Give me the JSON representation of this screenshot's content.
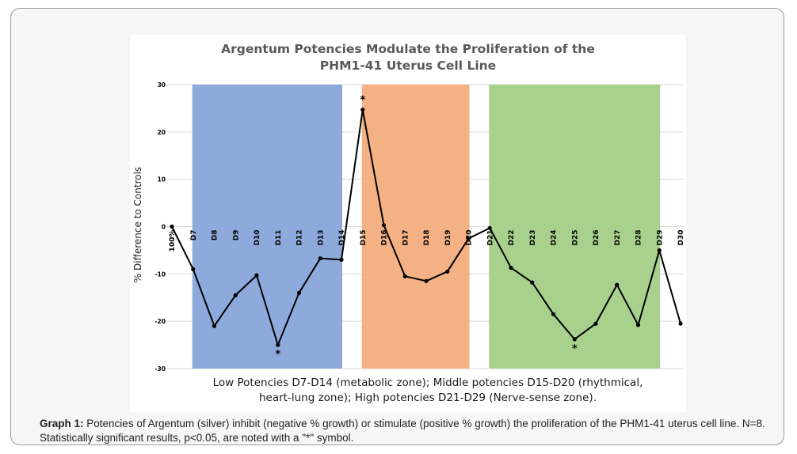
{
  "caption": {
    "label": "Graph 1:",
    "text": "Potencies of Argentum (silver) inhibit (negative % growth) or stimulate (positive % growth) the proliferation of the PHM1-41 uterus cell line. N=8. Statistically significant results, p<0.05, are noted with a \"*\" symbol."
  },
  "chart_data": {
    "type": "line",
    "title_lines": [
      "Argentum Potencies Modulate the Proliferation of the",
      "PHM1-41 Uterus Cell Line"
    ],
    "ylabel": "% Difference to Controls",
    "xlabel": "",
    "ylim": [
      -30,
      30
    ],
    "yticks": [
      30,
      20,
      10,
      0,
      -10,
      -20,
      -30
    ],
    "categories": [
      "100%",
      "D7",
      "D8",
      "D9",
      "D10",
      "D11",
      "D12",
      "D13",
      "D14",
      "D15",
      "D16",
      "D17",
      "D18",
      "D19",
      "D20",
      "D21",
      "D22",
      "D23",
      "D24",
      "D25",
      "D26",
      "D27",
      "D28",
      "D29",
      "D30"
    ],
    "series": [
      {
        "values": [
          0,
          -9,
          -21,
          -14.5,
          -10.3,
          -25,
          -14,
          -6.7,
          -7,
          24.7,
          0.3,
          -10.5,
          -11.5,
          -9.5,
          -2.5,
          -0.3,
          -8.7,
          -11.8,
          -18.5,
          -23.8,
          -20.5,
          -12.3,
          -20.8,
          -5,
          -20.5
        ],
        "color": "#000000"
      }
    ],
    "significant": [
      {
        "category": "D11",
        "marker": "*"
      },
      {
        "category": "D15",
        "marker": "*"
      },
      {
        "category": "D25",
        "marker": "*"
      }
    ],
    "zones": [
      {
        "from": "D7",
        "to": "D14",
        "color": "#8ea9db"
      },
      {
        "from": "D15",
        "to": "D20",
        "color": "#f4b183"
      },
      {
        "from": "D21",
        "to": "D29",
        "color": "#a9d18e"
      }
    ],
    "zone_note_lines": [
      "Low Potencies D7-D14 (metabolic zone); Middle potencies D15-D20 (rhythmical,",
      "heart-lung zone); High potencies D21-D29 (Nerve-sense zone)."
    ],
    "colors": {
      "line": "#000000",
      "grid": "#d9d9d9",
      "axis_text": "#000000"
    }
  }
}
